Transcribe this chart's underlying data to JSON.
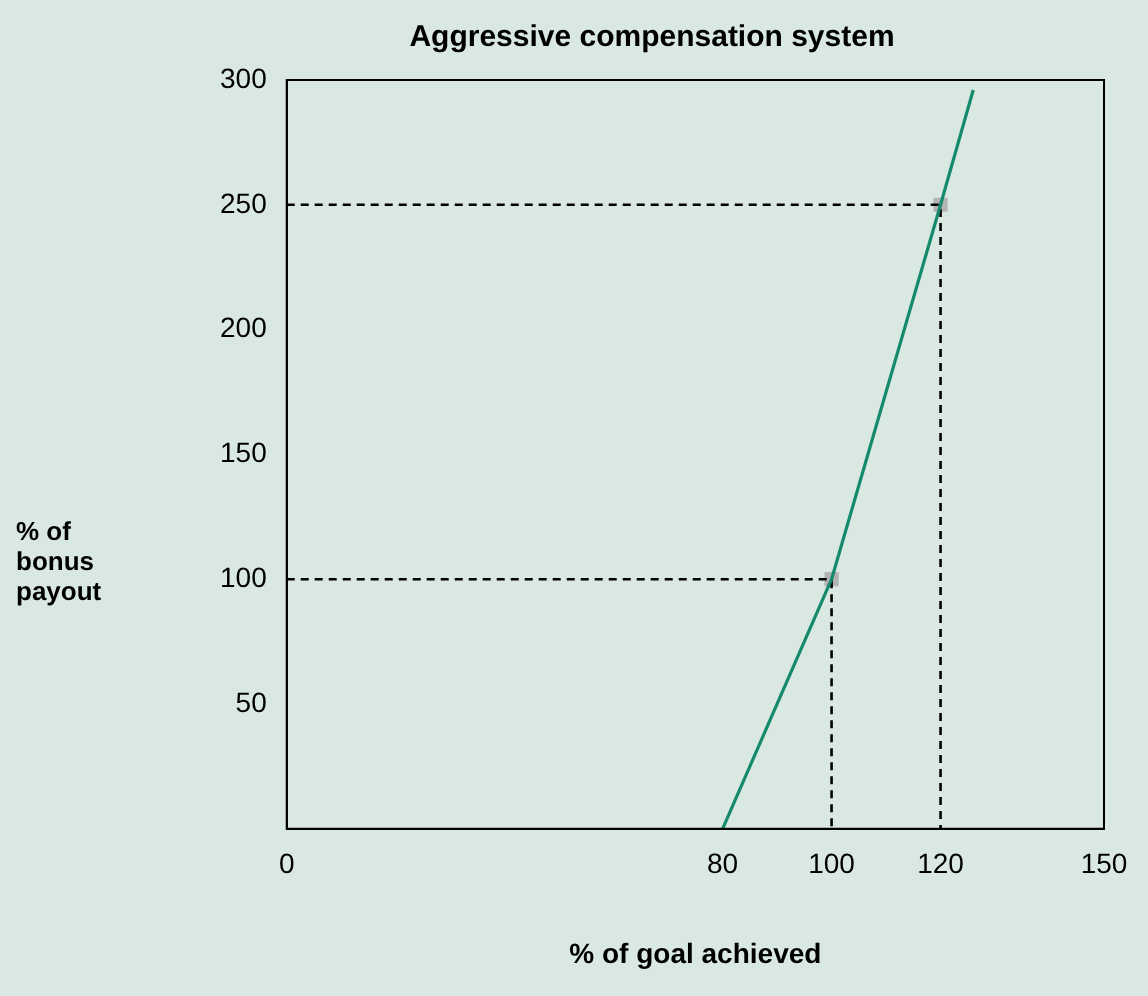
{
  "chart_data": {
    "type": "line",
    "title": "Aggressive compensation system",
    "xlabel": "% of goal achieved",
    "ylabel": "% of\nbonus\npayout",
    "xlim": [
      0,
      150
    ],
    "xticks": [
      0,
      80,
      100,
      120,
      150
    ],
    "ylim": [
      0,
      300
    ],
    "yticks": [
      50,
      100,
      150,
      200,
      250,
      300
    ],
    "grid": false,
    "legend": false,
    "series": [
      {
        "color": "#14896b",
        "x": [
          80,
          100,
          120,
          126
        ],
        "values": [
          0,
          100,
          250,
          296
        ],
        "marker": "none",
        "line_style": "solid"
      },
      {
        "color": "#000000",
        "x": [
          0,
          100,
          100
        ],
        "values": [
          100,
          100,
          0
        ],
        "marker": "none",
        "line_style": "dashed"
      },
      {
        "color": "#000000",
        "x": [
          0,
          120,
          120
        ],
        "values": [
          250,
          250,
          0
        ],
        "marker": "none",
        "line_style": "dashed"
      },
      {
        "type": "scatter",
        "color": "#b3b3b3",
        "x": [
          100,
          120
        ],
        "values": [
          100,
          250
        ],
        "marker": "square"
      }
    ]
  }
}
